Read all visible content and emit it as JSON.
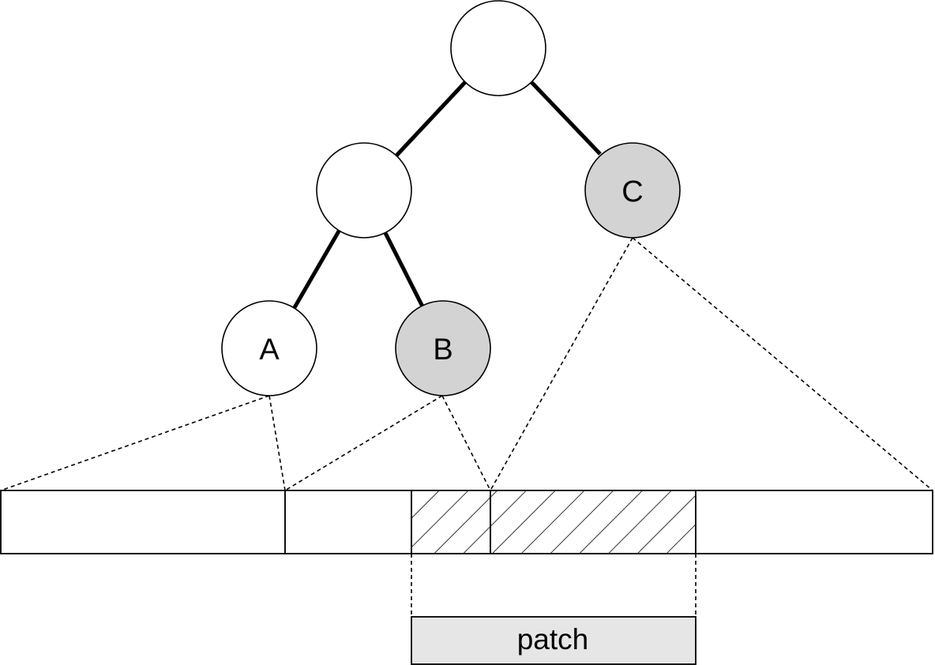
{
  "tree": {
    "nodes": [
      {
        "id": "root",
        "label": "",
        "highlighted": false
      },
      {
        "id": "left",
        "label": "",
        "highlighted": false
      },
      {
        "id": "C",
        "label": "C",
        "highlighted": true
      },
      {
        "id": "A",
        "label": "A",
        "highlighted": false
      },
      {
        "id": "B",
        "label": "B",
        "highlighted": true
      }
    ]
  },
  "patch": {
    "label": "patch"
  },
  "colors": {
    "highlight_fill": "#d3d3d3",
    "patch_fill": "#e6e6e6",
    "node_fill": "#ffffff",
    "line": "#000000"
  }
}
